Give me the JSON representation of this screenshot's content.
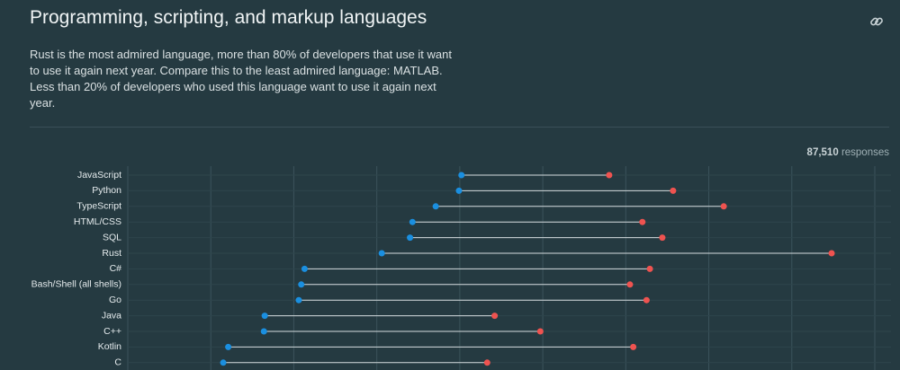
{
  "title": "Programming, scripting, and markup languages",
  "description": "Rust is the most admired language, more than 80% of developers that use it want to use it again next year. Compare this to the least admired language: MATLAB. Less than 20% of developers who used this language want to use it again next year.",
  "responses_count": "87,510",
  "responses_label": "responses",
  "chart_data": {
    "type": "dumbbell",
    "categories": [
      "JavaScript",
      "Python",
      "TypeScript",
      "HTML/CSS",
      "SQL",
      "Rust",
      "C#",
      "Bash/Shell (all shells)",
      "Go",
      "Java",
      "C++",
      "Kotlin",
      "C"
    ],
    "series": [
      {
        "color": "#1a8fe0",
        "values": [
          40.2,
          39.9,
          37.1,
          34.3,
          34.0,
          30.6,
          21.3,
          20.9,
          20.6,
          16.5,
          16.4,
          12.1,
          11.5
        ]
      },
      {
        "color": "#ef5350",
        "values": [
          58.0,
          65.7,
          71.8,
          62.0,
          64.4,
          84.8,
          62.9,
          60.5,
          62.5,
          44.2,
          49.7,
          60.9,
          43.3
        ]
      }
    ],
    "xlim": [
      0,
      90
    ],
    "xticks": [
      0,
      10,
      20,
      30,
      40,
      50,
      60,
      70,
      80,
      90
    ],
    "grid": true
  }
}
